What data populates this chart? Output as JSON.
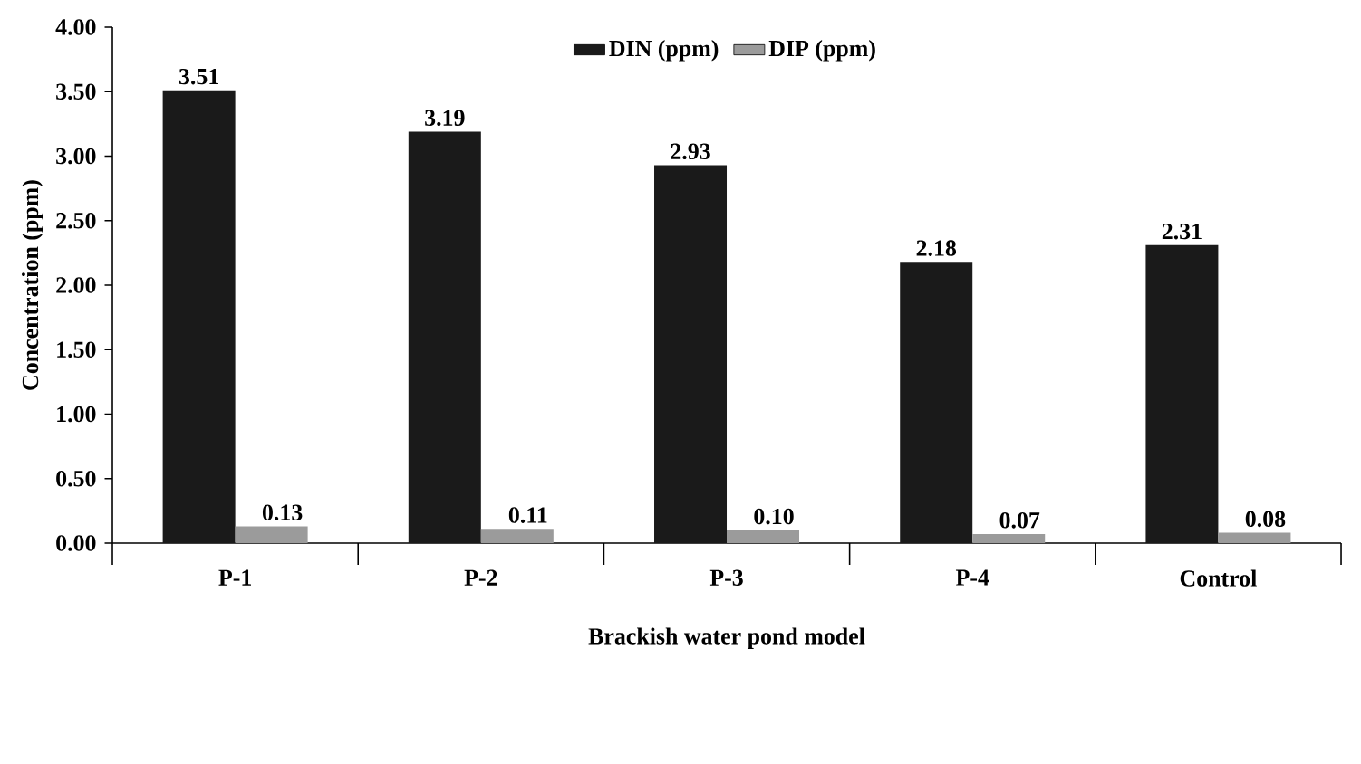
{
  "chart_data": {
    "type": "bar",
    "xlabel": "Brackish water pond model",
    "ylabel": "Concentration  (ppm)",
    "categories": [
      "P-1",
      "P-2",
      "P-3",
      "P-4",
      "Control"
    ],
    "series": [
      {
        "name": "DIN (ppm)",
        "color": "#1a1a1a",
        "values": [
          3.51,
          3.19,
          2.93,
          2.18,
          2.31
        ],
        "value_labels": [
          "3.51",
          "3.19",
          "2.93",
          "2.18",
          "2.31"
        ]
      },
      {
        "name": "DIP (ppm)",
        "color": "#9b9b9b",
        "values": [
          0.13,
          0.11,
          0.1,
          0.07,
          0.08
        ],
        "value_labels": [
          "0.13",
          "0.11",
          "0.10",
          "0.07",
          "0.08"
        ]
      }
    ],
    "ylim": [
      0,
      4
    ],
    "yticks": [
      {
        "value": 0,
        "label": "0.00"
      },
      {
        "value": 0.5,
        "label": "0.50"
      },
      {
        "value": 1,
        "label": "1.00"
      },
      {
        "value": 1.5,
        "label": "1.50"
      },
      {
        "value": 2,
        "label": "2.00"
      },
      {
        "value": 2.5,
        "label": "2.50"
      },
      {
        "value": 3,
        "label": "3.00"
      },
      {
        "value": 3.5,
        "label": "3.50"
      },
      {
        "value": 4,
        "label": "4.00"
      }
    ],
    "legend": "top",
    "grid": false
  }
}
